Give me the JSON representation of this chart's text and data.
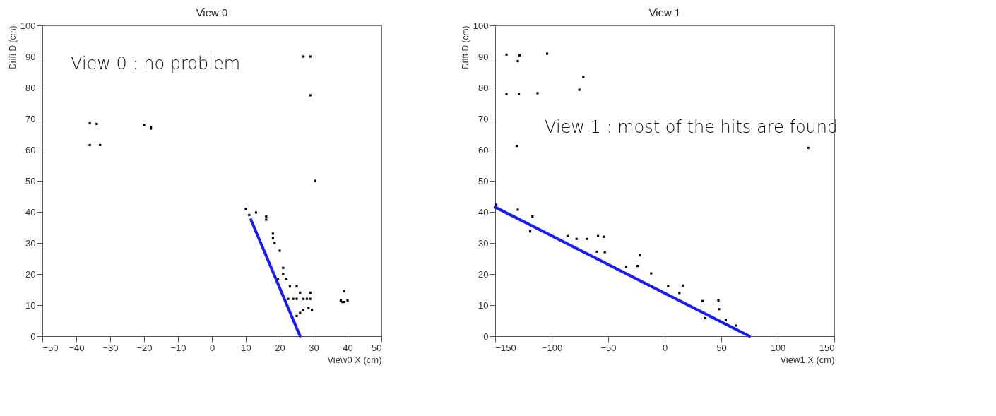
{
  "chart_data": [
    {
      "type": "scatter",
      "title": "View 0",
      "xlabel": "View0 X (cm)",
      "ylabel": "Drift D (cm)",
      "xlim": [
        -50,
        50
      ],
      "xticks": [
        -50,
        -40,
        -30,
        -20,
        -10,
        0,
        10,
        20,
        30,
        40,
        50
      ],
      "ylim": [
        0,
        100
      ],
      "yticks": [
        0,
        10,
        20,
        30,
        40,
        50,
        60,
        70,
        80,
        90,
        100
      ],
      "grid": false,
      "annotations": [
        "View 0 : no problem"
      ],
      "series": [
        {
          "marker": "square",
          "color": "#000000",
          "x": [
            -36,
            -34,
            -36,
            -33,
            -20,
            -18,
            -18,
            27,
            29,
            29,
            30.5,
            10,
            11,
            13,
            16,
            16,
            18,
            18,
            18.5,
            20,
            19.5,
            21,
            21,
            22,
            23,
            25,
            26,
            29,
            22.5,
            24,
            25,
            27,
            28,
            29,
            25,
            26,
            27,
            28.5,
            29.5,
            38,
            39,
            40,
            39,
            38.5
          ],
          "values": [
            68.5,
            68.3,
            61.5,
            61.5,
            68,
            67.3,
            66.8,
            90,
            90,
            77.5,
            50,
            41,
            39,
            39.8,
            38.5,
            37.5,
            33,
            31.5,
            30,
            27.5,
            18.5,
            22,
            20,
            18.5,
            16,
            16,
            14,
            14,
            12,
            12,
            12,
            12,
            12,
            12,
            6.5,
            7.5,
            8.5,
            9,
            8.5,
            11.5,
            11,
            11.5,
            14.5,
            11
          ]
        },
        {
          "type": "line",
          "color": "#1a1aff",
          "x": [
            11.5,
            26
          ],
          "values": [
            37.5,
            0
          ]
        }
      ]
    },
    {
      "type": "scatter",
      "title": "View 1",
      "xlabel": "View1 X (cm)",
      "ylabel": "Drift D (cm)",
      "xlim": [
        -150,
        150
      ],
      "xticks": [
        -150,
        -100,
        -50,
        0,
        50,
        100,
        150
      ],
      "ylim": [
        0,
        100
      ],
      "yticks": [
        0,
        10,
        20,
        30,
        40,
        50,
        60,
        70,
        80,
        90,
        100
      ],
      "grid": false,
      "annotations": [
        "View 1 : most of the hits are found"
      ],
      "series": [
        {
          "marker": "square",
          "color": "#000000",
          "x": [
            -140,
            -130,
            -128.5,
            -104,
            -140,
            -129,
            -112.5,
            -75.5,
            -72,
            -131,
            127,
            -149,
            -130,
            -117,
            -119,
            -86,
            -78,
            -69,
            -59,
            -54,
            -60,
            -53,
            -34,
            -22,
            -24,
            -12,
            3,
            16,
            13,
            33.5,
            36,
            47.5,
            48,
            54,
            63
          ],
          "values": [
            90.6,
            88.5,
            90.4,
            90.9,
            77.9,
            77.9,
            78.2,
            79.3,
            83.4,
            61.2,
            60.6,
            42.3,
            40.7,
            38.5,
            33.7,
            32.2,
            31.3,
            31.3,
            32.2,
            32,
            27.2,
            27,
            22.4,
            26,
            22.6,
            20.2,
            16.1,
            16.3,
            13.9,
            11.3,
            5.8,
            11.5,
            8.7,
            5.3,
            3.4
          ]
        },
        {
          "type": "line",
          "color": "#1a1aff",
          "x": [
            -150,
            75
          ],
          "values": [
            41.5,
            0
          ]
        }
      ]
    }
  ]
}
